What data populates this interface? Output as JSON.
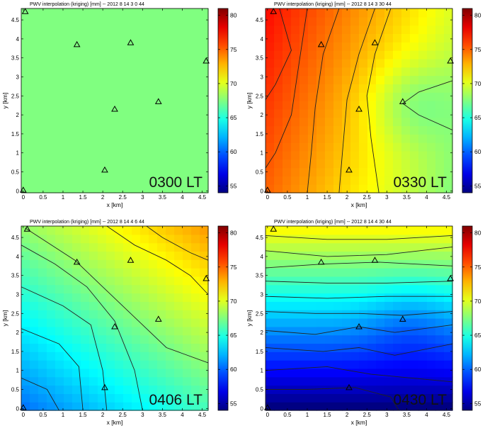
{
  "chart_data": [
    {
      "type": "heatmap",
      "panel": "top-left",
      "title": "PWV interpolation (kriging) [mm] -- 2012    8   14    3    0   44",
      "time_label": "0300 LT",
      "xlabel": "x [km]",
      "ylabel": "y [km]",
      "xlim": [
        -0.05,
        4.65
      ],
      "ylim": [
        -0.05,
        4.8
      ],
      "xticks": [
        "0",
        "0.5",
        "1",
        "1.5",
        "2",
        "2.5",
        "3",
        "3.5",
        "4",
        "4.5"
      ],
      "yticks": [
        "0",
        "0.5",
        "1",
        "1.5",
        "2",
        "2.5",
        "3",
        "3.5",
        "4",
        "4.5"
      ],
      "colorbar": {
        "min": 54,
        "max": 81,
        "ticks": [
          "55",
          "60",
          "65",
          "70",
          "75",
          "80"
        ]
      },
      "field": {
        "base": 67.5,
        "gx": 0,
        "gy": 0,
        "bump": 0
      },
      "contours": [],
      "stations": [
        [
          0.05,
          4.72
        ],
        [
          1.35,
          3.85
        ],
        [
          2.7,
          3.9
        ],
        [
          4.6,
          3.42
        ],
        [
          3.4,
          2.35
        ],
        [
          2.3,
          2.15
        ],
        [
          2.05,
          0.55
        ],
        [
          0.0,
          0.02
        ]
      ]
    },
    {
      "type": "heatmap",
      "panel": "top-right",
      "title": "PWV interpolation (kriging) [mm] -- 2012    8   14    3   30   44",
      "time_label": "0330 LT",
      "xlabel": "x [km]",
      "ylabel": "y [km]",
      "xlim": [
        -0.05,
        4.65
      ],
      "ylim": [
        -0.05,
        4.8
      ],
      "xticks": [
        "0",
        "0.5",
        "1",
        "1.5",
        "2",
        "2.5",
        "3",
        "3.5",
        "4",
        "4.5"
      ],
      "yticks": [
        "0",
        "0.5",
        "1",
        "1.5",
        "2",
        "2.5",
        "3",
        "3.5",
        "4",
        "4.5"
      ],
      "colorbar": {
        "min": 54,
        "max": 81,
        "ticks": [
          "55",
          "60",
          "65",
          "70",
          "75",
          "80"
        ]
      },
      "field": {
        "base": 72.5,
        "gx": -1.6,
        "gy": 0.5,
        "bump": -2.5
      },
      "contours": [
        [
          [
            0.3,
            4.8
          ],
          [
            0.6,
            3.7
          ],
          [
            0.2,
            2.8
          ],
          [
            -0.05,
            2.4
          ]
        ],
        [
          [
            1.0,
            4.8
          ],
          [
            0.8,
            3.4
          ],
          [
            0.6,
            2.0
          ],
          [
            0.2,
            1.0
          ],
          [
            -0.05,
            0.6
          ]
        ],
        [
          [
            1.8,
            4.8
          ],
          [
            1.4,
            3.6
          ],
          [
            1.2,
            2.2
          ],
          [
            1.1,
            1.0
          ],
          [
            1.0,
            -0.05
          ]
        ],
        [
          [
            2.7,
            4.8
          ],
          [
            2.3,
            3.6
          ],
          [
            2.0,
            2.4
          ],
          [
            1.9,
            1.2
          ],
          [
            1.8,
            -0.05
          ]
        ],
        [
          [
            3.1,
            4.8
          ],
          [
            2.7,
            3.6
          ],
          [
            2.5,
            2.5
          ],
          [
            2.6,
            1.4
          ],
          [
            2.8,
            -0.05
          ]
        ],
        [
          [
            4.65,
            2.9
          ],
          [
            3.8,
            2.6
          ],
          [
            3.4,
            2.3
          ],
          [
            3.8,
            2.0
          ],
          [
            4.65,
            1.6
          ]
        ]
      ],
      "stations": [
        [
          0.15,
          4.72
        ],
        [
          1.35,
          3.85
        ],
        [
          2.7,
          3.9
        ],
        [
          4.6,
          3.42
        ],
        [
          3.4,
          2.35
        ],
        [
          2.3,
          2.15
        ],
        [
          2.05,
          0.55
        ],
        [
          0.0,
          0.02
        ]
      ]
    },
    {
      "type": "heatmap",
      "panel": "bottom-left",
      "title": "PWV interpolation (kriging) [mm] -- 2012    8   14    4    6   44",
      "time_label": "0406 LT",
      "xlabel": "x [km]",
      "ylabel": "y [km]",
      "xlim": [
        -0.05,
        4.65
      ],
      "ylim": [
        -0.05,
        4.8
      ],
      "xticks": [
        "0",
        "0.5",
        "1",
        "1.5",
        "2",
        "2.5",
        "3",
        "3.5",
        "4",
        "4.5"
      ],
      "yticks": [
        "0",
        "0.5",
        "1",
        "1.5",
        "2",
        "2.5",
        "3",
        "3.5",
        "4",
        "4.5"
      ],
      "colorbar": {
        "min": 54,
        "max": 81,
        "ticks": [
          "55",
          "60",
          "65",
          "70",
          "75",
          "80"
        ]
      },
      "field": {
        "base": 67.0,
        "gx": 1.2,
        "gy": 1.6,
        "bump": 0
      },
      "contours": [
        [
          [
            0.05,
            4.75
          ],
          [
            1.3,
            3.9
          ],
          [
            2.0,
            3.2
          ],
          [
            2.8,
            2.4
          ],
          [
            3.6,
            1.6
          ],
          [
            4.65,
            1.2
          ]
        ],
        [
          [
            -0.05,
            4.3
          ],
          [
            0.8,
            3.8
          ],
          [
            1.6,
            3.2
          ],
          [
            2.3,
            2.3
          ],
          [
            2.8,
            1.0
          ],
          [
            3.0,
            -0.05
          ]
        ],
        [
          [
            2.1,
            4.8
          ],
          [
            2.8,
            4.3
          ],
          [
            3.6,
            3.9
          ],
          [
            4.2,
            3.5
          ],
          [
            4.65,
            3.0
          ]
        ],
        [
          [
            3.1,
            4.8
          ],
          [
            3.5,
            4.5
          ],
          [
            4.2,
            4.1
          ],
          [
            4.65,
            3.9
          ]
        ],
        [
          [
            -0.05,
            3.2
          ],
          [
            1.0,
            2.7
          ],
          [
            1.7,
            2.2
          ],
          [
            2.0,
            1.0
          ],
          [
            2.1,
            -0.05
          ]
        ],
        [
          [
            -0.05,
            2.1
          ],
          [
            0.9,
            1.7
          ],
          [
            1.4,
            1.1
          ],
          [
            1.5,
            -0.05
          ]
        ],
        [
          [
            -0.05,
            0.8
          ],
          [
            0.6,
            0.5
          ],
          [
            0.9,
            -0.05
          ]
        ]
      ],
      "stations": [
        [
          0.1,
          4.72
        ],
        [
          1.35,
          3.85
        ],
        [
          2.7,
          3.9
        ],
        [
          4.6,
          3.42
        ],
        [
          3.4,
          2.35
        ],
        [
          2.3,
          2.15
        ],
        [
          2.05,
          0.55
        ],
        [
          0.0,
          0.02
        ]
      ]
    },
    {
      "type": "heatmap",
      "panel": "bottom-right",
      "title": "PWV interpolation (kriging) [mm] -- 2012    8   14    4   30   44",
      "time_label": "0430 LT",
      "xlabel": "x [km]",
      "ylabel": "y [km]",
      "xlim": [
        -0.05,
        4.65
      ],
      "ylim": [
        -0.05,
        4.8
      ],
      "xticks": [
        "0",
        "0.5",
        "1",
        "1.5",
        "2",
        "2.5",
        "3",
        "3.5",
        "4",
        "4.5"
      ],
      "yticks": [
        "0",
        "0.5",
        "1",
        "1.5",
        "2",
        "2.5",
        "3",
        "3.5",
        "4",
        "4.5"
      ],
      "colorbar": {
        "min": 54,
        "max": 81,
        "ticks": [
          "55",
          "60",
          "65",
          "70",
          "75",
          "80"
        ]
      },
      "field": {
        "base": 62.5,
        "gx": 0,
        "gy": 3.6,
        "bump": -1.5
      },
      "contours": [
        [
          [
            -0.05,
            4.55
          ],
          [
            1.5,
            4.45
          ],
          [
            3.0,
            4.45
          ],
          [
            4.65,
            4.55
          ]
        ],
        [
          [
            -0.05,
            4.15
          ],
          [
            1.5,
            4.0
          ],
          [
            3.0,
            4.05
          ],
          [
            4.65,
            4.25
          ]
        ],
        [
          [
            -0.05,
            3.7
          ],
          [
            1.4,
            3.8
          ],
          [
            2.8,
            3.85
          ],
          [
            4.65,
            3.75
          ]
        ],
        [
          [
            -0.05,
            3.35
          ],
          [
            1.5,
            3.3
          ],
          [
            3.0,
            3.3
          ],
          [
            4.65,
            3.35
          ]
        ],
        [
          [
            -0.05,
            2.95
          ],
          [
            1.5,
            2.9
          ],
          [
            3.0,
            2.95
          ],
          [
            4.65,
            2.95
          ]
        ],
        [
          [
            -0.05,
            2.55
          ],
          [
            1.2,
            2.5
          ],
          [
            2.3,
            2.5
          ],
          [
            3.4,
            2.45
          ],
          [
            4.65,
            2.55
          ]
        ],
        [
          [
            -0.05,
            2.05
          ],
          [
            1.2,
            1.95
          ],
          [
            2.3,
            2.15
          ],
          [
            3.2,
            2.0
          ],
          [
            4.65,
            2.2
          ]
        ],
        [
          [
            -0.05,
            1.6
          ],
          [
            1.4,
            1.5
          ],
          [
            2.3,
            1.6
          ],
          [
            3.2,
            1.4
          ],
          [
            4.65,
            1.7
          ]
        ],
        [
          [
            -0.05,
            1.0
          ],
          [
            1.5,
            1.1
          ],
          [
            2.6,
            0.9
          ],
          [
            4.65,
            0.7
          ]
        ],
        [
          [
            -0.05,
            0.5
          ],
          [
            1.0,
            0.5
          ],
          [
            2.2,
            0.55
          ],
          [
            3.1,
            0.3
          ],
          [
            3.3,
            -0.05
          ]
        ]
      ],
      "stations": [
        [
          0.15,
          4.72
        ],
        [
          1.35,
          3.85
        ],
        [
          2.7,
          3.9
        ],
        [
          4.6,
          3.42
        ],
        [
          3.4,
          2.35
        ],
        [
          2.3,
          2.15
        ],
        [
          2.05,
          0.55
        ],
        [
          0.0,
          0.02
        ]
      ]
    }
  ]
}
